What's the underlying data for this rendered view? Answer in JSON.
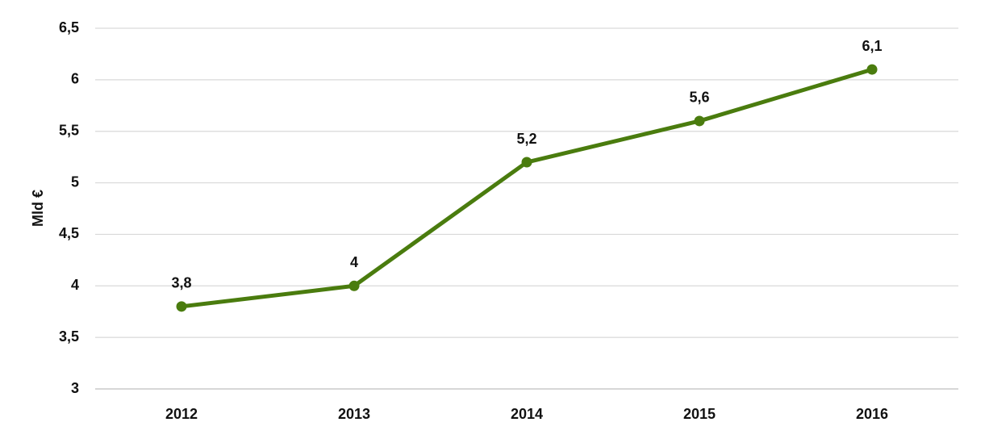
{
  "chart_data": {
    "type": "line",
    "y_label": "Mld €",
    "categories": [
      "2012",
      "2013",
      "2014",
      "2015",
      "2016"
    ],
    "values": [
      3.8,
      4,
      5.2,
      5.6,
      6.1
    ],
    "value_labels": [
      "3,8",
      "4",
      "5,2",
      "5,6",
      "6,1"
    ],
    "color": "#4a7c0e",
    "ylim": [
      3,
      6.5
    ],
    "yticks": [
      3,
      {
        "value": 3.5,
        "label": "3,5"
      },
      4,
      {
        "value": 4.5,
        "label": "4,5"
      },
      5,
      {
        "value": 5.5,
        "label": "5,5"
      },
      6,
      {
        "value": 6.5,
        "label": "6,5"
      }
    ],
    "grid": true
  }
}
